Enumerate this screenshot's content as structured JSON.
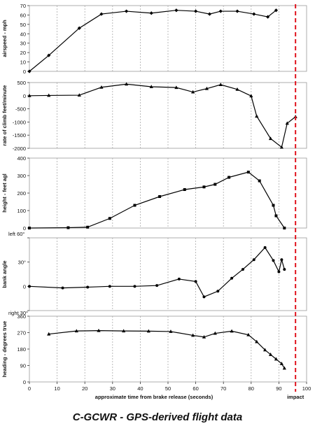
{
  "figure": {
    "caption": "C-GCWR - GPS-derived flight data",
    "impact_label": "impact",
    "impact_color": "#e0141e",
    "line_color": "#000000",
    "grid_color": "#aaaaaa"
  },
  "chart_data": [
    {
      "type": "line",
      "ylabel": "airspeed - mph",
      "ylim": [
        0,
        70
      ],
      "yticks": [
        0,
        10,
        20,
        30,
        40,
        50,
        60,
        70
      ],
      "ytick_labels": [
        "0",
        "10",
        "20",
        "30",
        "40",
        "50",
        "60",
        "70"
      ],
      "xlim": [
        0,
        100
      ],
      "grid": "vertical-dotted",
      "marker": "diamond",
      "x": [
        0,
        7,
        18,
        26,
        35,
        44,
        53,
        60,
        65,
        69,
        75,
        81,
        86,
        89
      ],
      "y": [
        0,
        17,
        46,
        61,
        64,
        62,
        65,
        64,
        61,
        64,
        64,
        61,
        58,
        65
      ]
    },
    {
      "type": "line",
      "ylabel": "rate of climb feet/minute",
      "ylim": [
        -2000,
        500
      ],
      "yticks": [
        -2000,
        -1500,
        -1000,
        -500,
        0,
        500
      ],
      "ytick_labels": [
        "-2000",
        "-1500",
        "-1000",
        "-500",
        "0",
        "500"
      ],
      "xlim": [
        0,
        100
      ],
      "grid": "vertical-dotted",
      "marker": "triangle",
      "x": [
        0,
        7,
        18,
        26,
        35,
        44,
        53,
        59,
        64,
        69,
        75,
        80,
        82,
        87,
        91,
        93,
        96
      ],
      "y": [
        0,
        10,
        20,
        320,
        440,
        340,
        310,
        140,
        270,
        420,
        240,
        -10,
        -780,
        -1630,
        -1960,
        -1050,
        -800
      ]
    },
    {
      "type": "line",
      "ylabel": "height - feet agl",
      "ylim": [
        0,
        400
      ],
      "yticks": [
        0,
        100,
        200,
        300,
        400
      ],
      "ytick_labels": [
        "0",
        "100",
        "200",
        "300",
        "400"
      ],
      "xlim": [
        0,
        100
      ],
      "grid": "vertical-dotted",
      "marker": "square",
      "x": [
        0,
        14,
        21,
        29,
        38,
        47,
        56,
        63,
        67,
        72,
        79,
        83,
        88,
        89,
        92
      ],
      "y": [
        0,
        2,
        5,
        55,
        130,
        180,
        220,
        235,
        250,
        290,
        320,
        270,
        130,
        70,
        0
      ]
    },
    {
      "type": "line",
      "ylabel": "bank angle",
      "ylim": [
        -30,
        60
      ],
      "yticks": [
        -30,
        0,
        30,
        60
      ],
      "ytick_labels": [
        "right 30°",
        "0",
        "30°",
        "left 60°"
      ],
      "xlim": [
        0,
        100
      ],
      "grid": "vertical-dotted",
      "marker": "circle",
      "x": [
        0,
        12,
        21,
        29,
        38,
        46,
        54,
        60,
        63,
        68,
        73,
        77,
        81,
        85,
        88,
        90,
        91,
        92
      ],
      "y": [
        0,
        -2,
        -1,
        0,
        0,
        1,
        9,
        6,
        -13,
        -6,
        10,
        21,
        33,
        48,
        32,
        18,
        33,
        21
      ]
    },
    {
      "type": "line",
      "ylabel": "heading - degrees true",
      "ylim": [
        0,
        360
      ],
      "yticks": [
        0,
        90,
        180,
        270,
        360
      ],
      "ytick_labels": [
        "0",
        "90",
        "180",
        "270",
        "360"
      ],
      "xlim": [
        0,
        100
      ],
      "xticks": [
        0,
        10,
        20,
        30,
        40,
        50,
        60,
        70,
        80,
        90,
        100
      ],
      "xtick_labels": [
        "0",
        "10",
        "20",
        "30",
        "40",
        "50",
        "60",
        "70",
        "80",
        "90",
        "100"
      ],
      "xlabel": "approximate time from brake release (seconds)",
      "grid": "vertical-dotted",
      "marker": "triangle",
      "x": [
        7,
        17,
        25,
        34,
        43,
        51,
        59,
        63,
        67,
        73,
        79,
        82,
        85,
        87,
        89,
        91,
        92
      ],
      "y": [
        262,
        279,
        281,
        279,
        278,
        276,
        255,
        246,
        266,
        278,
        258,
        220,
        175,
        150,
        125,
        100,
        75
      ]
    }
  ]
}
